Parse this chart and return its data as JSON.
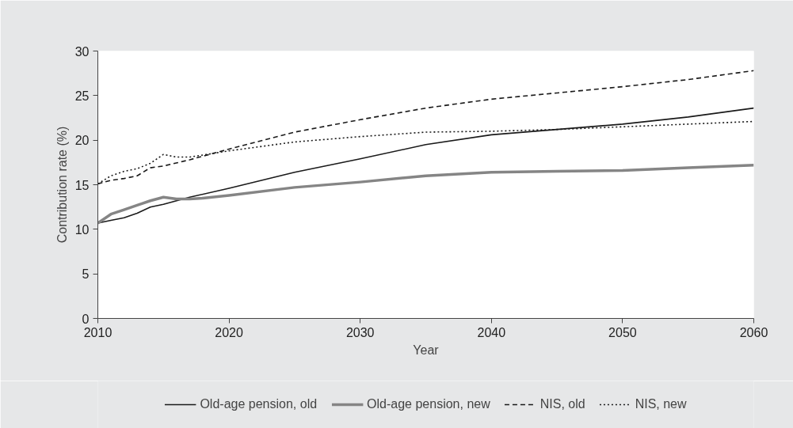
{
  "chart_data": {
    "type": "line",
    "xlabel": "Year",
    "ylabel": "Contribution rate (%)",
    "xlim": [
      2010,
      2060
    ],
    "xticks": [
      2010,
      2020,
      2030,
      2040,
      2050,
      2060
    ],
    "ylim": [
      0,
      30
    ],
    "yticks": [
      0,
      5,
      10,
      15,
      20,
      25,
      30
    ],
    "grid": false,
    "legend": "bottom",
    "marker": "none",
    "series": [
      {
        "name": "Old-age pension, old",
        "color": "#1a1a1a",
        "line_style": "solid",
        "x": [
          2010,
          2011,
          2012,
          2013,
          2014,
          2015,
          2016,
          2017,
          2020,
          2025,
          2030,
          2035,
          2040,
          2045,
          2050,
          2055,
          2060
        ],
        "values": [
          10.7,
          11.0,
          11.3,
          11.8,
          12.5,
          12.8,
          13.2,
          13.6,
          14.6,
          16.4,
          17.9,
          19.5,
          20.6,
          21.2,
          21.8,
          22.6,
          23.6
        ]
      },
      {
        "name": "Old-age pension, new",
        "color": "#858585",
        "line_style": "solid",
        "x": [
          2010,
          2011,
          2012,
          2013,
          2014,
          2015,
          2016,
          2017,
          2018,
          2020,
          2025,
          2030,
          2035,
          2040,
          2045,
          2050,
          2055,
          2060
        ],
        "values": [
          10.7,
          11.7,
          12.2,
          12.7,
          13.2,
          13.6,
          13.4,
          13.4,
          13.5,
          13.8,
          14.7,
          15.3,
          16.0,
          16.4,
          16.5,
          16.6,
          16.9,
          17.2
        ]
      },
      {
        "name": "NIS, old",
        "color": "#1a1a1a",
        "line_style": "dashed",
        "x": [
          2010,
          2011,
          2012,
          2013,
          2014,
          2015,
          2017,
          2020,
          2025,
          2030,
          2035,
          2040,
          2045,
          2050,
          2055,
          2060
        ],
        "values": [
          15.1,
          15.5,
          15.7,
          16.0,
          16.9,
          17.1,
          17.8,
          19.0,
          20.9,
          22.3,
          23.6,
          24.6,
          25.3,
          26.0,
          26.8,
          27.8
        ]
      },
      {
        "name": "NIS, new",
        "color": "#1a1a1a",
        "line_style": "dotted",
        "x": [
          2010,
          2011,
          2012,
          2013,
          2014,
          2015,
          2016,
          2017,
          2020,
          2025,
          2030,
          2035,
          2040,
          2045,
          2050,
          2055,
          2060
        ],
        "values": [
          15.1,
          16.0,
          16.5,
          16.8,
          17.4,
          18.4,
          18.1,
          18.1,
          18.8,
          19.8,
          20.4,
          20.9,
          21.0,
          21.2,
          21.5,
          21.8,
          22.1
        ]
      }
    ]
  }
}
